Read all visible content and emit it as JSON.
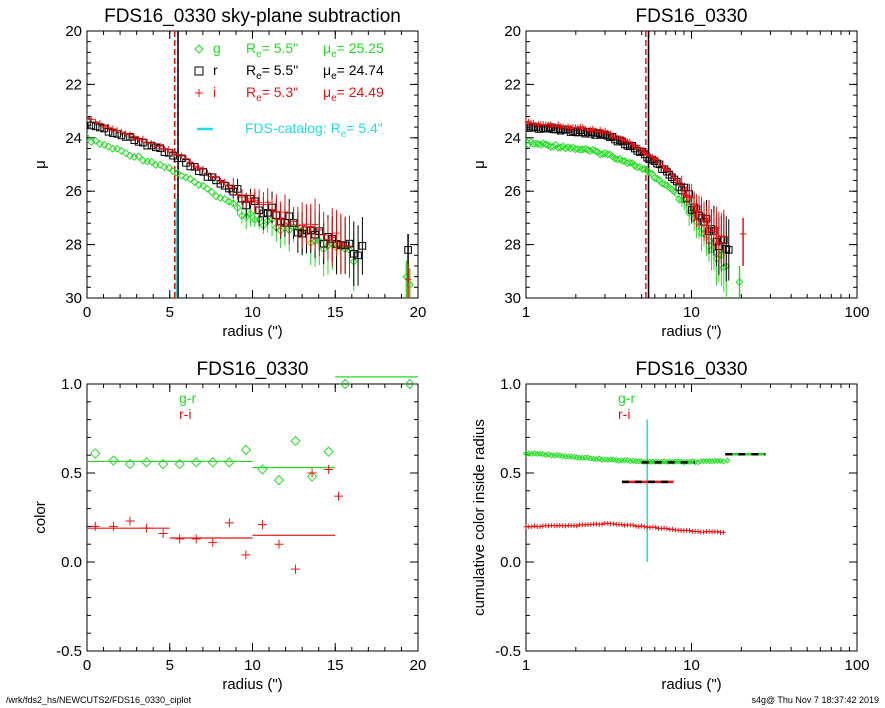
{
  "footer": {
    "path": "/wrk/fds2_hs/NEWCUTS2/FDS16_0330_ciplot",
    "stamp": "s4g@  Thu Nov  7 18:37:42 2019"
  },
  "colors": {
    "g": "#22dd22",
    "r": "#000000",
    "i": "#ee1111",
    "catalog": "#22dddd"
  },
  "chart_data": [
    {
      "id": "p1",
      "type": "scatter",
      "title": "FDS16_0330 sky-plane subtraction",
      "xlabel": "radius (\")",
      "ylabel": "μ",
      "xscale": "linear",
      "xlim": [
        0,
        20
      ],
      "ylim": [
        30,
        20
      ],
      "xticks": [
        0,
        5,
        10,
        15,
        20
      ],
      "yticks": [
        20,
        22,
        24,
        26,
        28,
        30
      ],
      "legend": {
        "placement": "top-right",
        "entries": [
          {
            "band": "g",
            "marker": "diamond",
            "Re": "5.5\"",
            "mu": "25.25"
          },
          {
            "band": "r",
            "marker": "square",
            "Re": "5.5\"",
            "mu": "24.74"
          },
          {
            "band": "i",
            "marker": "plus",
            "Re": "5.3\"",
            "mu": "24.49"
          }
        ],
        "catalog_label": "FDS-catalog: R",
        "catalog_value": "5.4\"",
        "re_label": "R",
        "mu_label": "μ",
        "sub_e": "e",
        "eq": "="
      },
      "vlines": [
        {
          "x": 5.5,
          "color": "g",
          "dash": true
        },
        {
          "x": 5.5,
          "color": "r",
          "dash": false
        },
        {
          "x": 5.3,
          "color": "i",
          "dash": true
        },
        {
          "x": 5.4,
          "color": "catalog",
          "dash": false,
          "ymin": 26.3
        }
      ],
      "series": [
        {
          "band": "g",
          "marker": "diamond",
          "profile": [
            [
              0.0,
              24.05
            ],
            [
              5.0,
              25.15
            ],
            [
              10.0,
              26.9
            ],
            [
              14.0,
              27.9
            ],
            [
              16.0,
              28.45
            ]
          ],
          "x_end": 16.3,
          "tail": [
            [
              19.3,
              29.2
            ],
            [
              19.5,
              29.5
            ]
          ]
        },
        {
          "band": "r",
          "marker": "square",
          "profile": [
            [
              0.0,
              23.45
            ],
            [
              5.0,
              24.55
            ],
            [
              10.0,
              26.45
            ],
            [
              14.0,
              27.7
            ],
            [
              16.0,
              28.1
            ]
          ],
          "x_end": 16.8,
          "tail": [
            [
              19.4,
              28.2
            ]
          ]
        },
        {
          "band": "i",
          "marker": "plus",
          "profile": [
            [
              0.0,
              23.3
            ],
            [
              5.0,
              24.45
            ],
            [
              10.0,
              26.35
            ],
            [
              14.0,
              27.5
            ],
            [
              16.0,
              27.9
            ]
          ],
          "x_end": 16.1,
          "tail": [
            [
              19.4,
              29.3
            ]
          ]
        }
      ]
    },
    {
      "id": "p2",
      "type": "scatter",
      "title": "FDS16_0330",
      "xlabel": "radius (\")",
      "ylabel": "μ",
      "xscale": "log",
      "xlim": [
        1,
        100
      ],
      "ylim": [
        30,
        20
      ],
      "xticks": [
        1,
        10,
        100
      ],
      "yticks": [
        20,
        22,
        24,
        26,
        28,
        30
      ],
      "vlines": [
        {
          "x": 5.5,
          "color": "g",
          "dash": true
        },
        {
          "x": 5.5,
          "color": "r",
          "dash": false
        },
        {
          "x": 5.3,
          "color": "i",
          "dash": true
        }
      ],
      "series": [
        {
          "band": "g",
          "marker": "diamond",
          "profile": [
            [
              1.0,
              24.2
            ],
            [
              3.0,
              24.6
            ],
            [
              5.0,
              25.15
            ],
            [
              8.0,
              26.1
            ],
            [
              10.0,
              26.9
            ],
            [
              12.0,
              27.8
            ],
            [
              14.0,
              28.4
            ],
            [
              16.0,
              28.8
            ]
          ],
          "x_end": 16.3,
          "tail": [
            [
              19.5,
              29.4
            ]
          ]
        },
        {
          "band": "r",
          "marker": "square",
          "profile": [
            [
              1.0,
              23.6
            ],
            [
              3.0,
              23.9
            ],
            [
              5.0,
              24.55
            ],
            [
              8.0,
              25.6
            ],
            [
              10.0,
              26.45
            ],
            [
              12.0,
              27.2
            ],
            [
              14.0,
              27.7
            ],
            [
              16.0,
              28.1
            ]
          ],
          "x_end": 16.8,
          "tail": []
        },
        {
          "band": "i",
          "marker": "plus",
          "profile": [
            [
              1.0,
              23.45
            ],
            [
              3.0,
              23.8
            ],
            [
              5.0,
              24.45
            ],
            [
              8.0,
              25.5
            ],
            [
              10.0,
              26.35
            ],
            [
              12.0,
              27.0
            ],
            [
              14.0,
              27.5
            ],
            [
              16.0,
              27.9
            ]
          ],
          "x_end": 16.1,
          "tail": [
            [
              20.5,
              27.6
            ]
          ]
        }
      ]
    },
    {
      "id": "p3",
      "type": "scatter",
      "title": "FDS16_0330",
      "xlabel": "radius (\")",
      "ylabel": "color",
      "xscale": "linear",
      "xlim": [
        0,
        20
      ],
      "ylim": [
        -0.5,
        1.0
      ],
      "xticks": [
        0,
        5,
        10,
        15,
        20
      ],
      "yticks": [
        -0.5,
        0.0,
        0.5,
        1.0
      ],
      "ytick_labels": [
        "-0.5",
        "0.0",
        "0.5",
        "1.0"
      ],
      "legend": {
        "placement": "top-left",
        "entries": [
          "g-r",
          "r-i"
        ]
      },
      "gr_points": [
        [
          0.5,
          0.61
        ],
        [
          1.6,
          0.57
        ],
        [
          2.6,
          0.55
        ],
        [
          3.6,
          0.56
        ],
        [
          4.6,
          0.55
        ],
        [
          5.6,
          0.55
        ],
        [
          6.6,
          0.56
        ],
        [
          7.6,
          0.56
        ],
        [
          8.6,
          0.56
        ],
        [
          9.6,
          0.63
        ],
        [
          10.6,
          0.52
        ],
        [
          11.6,
          0.46
        ],
        [
          12.6,
          0.68
        ],
        [
          13.6,
          0.48
        ],
        [
          14.6,
          0.62
        ],
        [
          15.6,
          1.0
        ],
        [
          19.5,
          1.0
        ]
      ],
      "ri_points": [
        [
          0.5,
          0.2
        ],
        [
          1.6,
          0.2
        ],
        [
          2.6,
          0.23
        ],
        [
          3.6,
          0.19
        ],
        [
          4.6,
          0.16
        ],
        [
          5.6,
          0.13
        ],
        [
          6.6,
          0.13
        ],
        [
          7.6,
          0.11
        ],
        [
          8.6,
          0.22
        ],
        [
          9.6,
          0.04
        ],
        [
          10.6,
          0.21
        ],
        [
          11.6,
          0.1
        ],
        [
          12.6,
          -0.04
        ],
        [
          13.6,
          0.5
        ],
        [
          14.6,
          0.52
        ],
        [
          15.2,
          0.37
        ]
      ],
      "gr_segments": [
        [
          0,
          10,
          0.565
        ],
        [
          10,
          15,
          0.53
        ],
        [
          15,
          20,
          1.04
        ]
      ],
      "ri_segments": [
        [
          0,
          5,
          0.19
        ],
        [
          5,
          10,
          0.135
        ],
        [
          10,
          15,
          0.15
        ]
      ]
    },
    {
      "id": "p4",
      "type": "scatter",
      "title": "FDS16_0330",
      "xlabel": "radius (\")",
      "ylabel": "cumulative color inside radius",
      "xscale": "log",
      "xlim": [
        1,
        100
      ],
      "ylim": [
        -0.5,
        1.0
      ],
      "xticks": [
        1,
        10,
        100
      ],
      "yticks": [
        -0.5,
        0.0,
        0.5,
        1.0
      ],
      "ytick_labels": [
        "-0.5",
        "0.0",
        "0.5",
        "1.0"
      ],
      "legend": {
        "placement": "top-left",
        "entries": [
          "g-r",
          "r-i"
        ]
      },
      "gr_cumulative": [
        [
          1.0,
          0.61
        ],
        [
          2.0,
          0.59
        ],
        [
          3.0,
          0.575
        ],
        [
          5.0,
          0.565
        ],
        [
          10.0,
          0.562
        ],
        [
          16.0,
          0.568
        ]
      ],
      "gr_cumulative_xend": 16.0,
      "gr_extra": [
        [
          16.5,
          0.57
        ]
      ],
      "ri_cumulative": [
        [
          1.0,
          0.2
        ],
        [
          2.0,
          0.205
        ],
        [
          3.0,
          0.215
        ],
        [
          5.0,
          0.2
        ],
        [
          8.0,
          0.18
        ],
        [
          12.0,
          0.17
        ],
        [
          16.0,
          0.165
        ]
      ],
      "ri_cumulative_xend": 16.0,
      "cyan_vline": {
        "x": 5.4,
        "ymin": 0.0,
        "ymax": 0.8
      },
      "bars": [
        {
          "x1": 5.0,
          "x2": 10.5,
          "y": 0.56,
          "color": "g"
        },
        {
          "x1": 16.0,
          "x2": 28.0,
          "y": 0.605,
          "color": "g"
        },
        {
          "x1": 3.8,
          "x2": 7.8,
          "y": 0.45,
          "color": "i"
        }
      ]
    }
  ]
}
